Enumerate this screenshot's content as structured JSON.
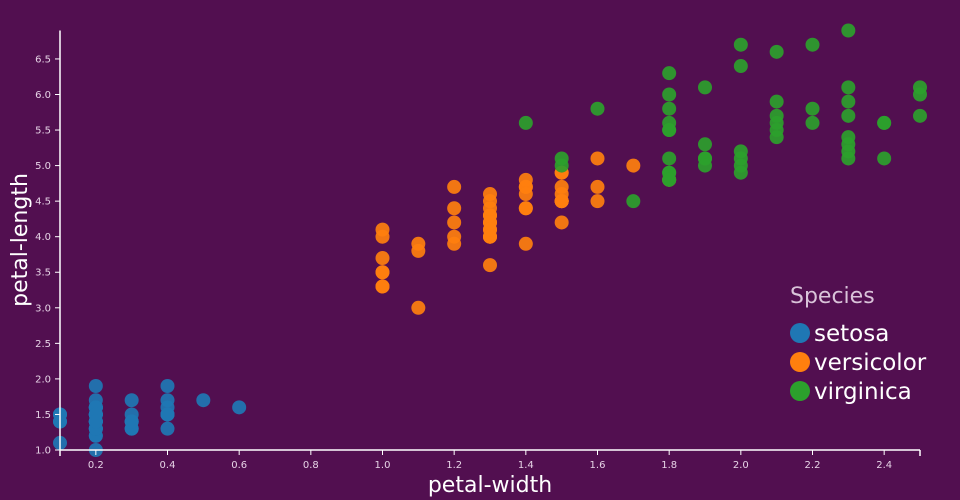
{
  "chart_data": {
    "type": "scatter",
    "xlabel": "petal-width",
    "ylabel": "petal-length",
    "xlim": [
      0.1,
      2.5
    ],
    "ylim": [
      1.0,
      6.9
    ],
    "xticks": [
      "0.2",
      "0.4",
      "0.6",
      "0.8",
      "1.0",
      "1.2",
      "1.4",
      "1.6",
      "1.8",
      "2.0",
      "2.2",
      "2.4"
    ],
    "yticks": [
      "1.0",
      "1.5",
      "2.0",
      "2.5",
      "3.0",
      "3.5",
      "4.0",
      "4.5",
      "5.0",
      "5.5",
      "6.0",
      "6.5"
    ],
    "legend": {
      "title": "Species",
      "placement": "bottom-right"
    },
    "series": [
      {
        "name": "setosa",
        "color": "#1f77b4",
        "points": [
          [
            0.2,
            1.4
          ],
          [
            0.2,
            1.4
          ],
          [
            0.2,
            1.3
          ],
          [
            0.2,
            1.5
          ],
          [
            0.2,
            1.4
          ],
          [
            0.4,
            1.7
          ],
          [
            0.3,
            1.4
          ],
          [
            0.2,
            1.5
          ],
          [
            0.2,
            1.4
          ],
          [
            0.1,
            1.5
          ],
          [
            0.2,
            1.5
          ],
          [
            0.2,
            1.6
          ],
          [
            0.1,
            1.4
          ],
          [
            0.1,
            1.1
          ],
          [
            0.2,
            1.2
          ],
          [
            0.4,
            1.5
          ],
          [
            0.4,
            1.3
          ],
          [
            0.3,
            1.4
          ],
          [
            0.3,
            1.7
          ],
          [
            0.3,
            1.5
          ],
          [
            0.2,
            1.7
          ],
          [
            0.4,
            1.5
          ],
          [
            0.2,
            1.0
          ],
          [
            0.5,
            1.7
          ],
          [
            0.2,
            1.9
          ],
          [
            0.2,
            1.6
          ],
          [
            0.4,
            1.6
          ],
          [
            0.2,
            1.5
          ],
          [
            0.2,
            1.4
          ],
          [
            0.2,
            1.6
          ],
          [
            0.2,
            1.6
          ],
          [
            0.4,
            1.5
          ],
          [
            0.1,
            1.5
          ],
          [
            0.2,
            1.4
          ],
          [
            0.2,
            1.5
          ],
          [
            0.2,
            1.2
          ],
          [
            0.2,
            1.3
          ],
          [
            0.1,
            1.4
          ],
          [
            0.2,
            1.3
          ],
          [
            0.2,
            1.5
          ],
          [
            0.3,
            1.3
          ],
          [
            0.3,
            1.3
          ],
          [
            0.2,
            1.3
          ],
          [
            0.6,
            1.6
          ],
          [
            0.4,
            1.9
          ],
          [
            0.3,
            1.4
          ],
          [
            0.2,
            1.6
          ],
          [
            0.2,
            1.4
          ],
          [
            0.2,
            1.5
          ],
          [
            0.2,
            1.4
          ]
        ]
      },
      {
        "name": "versicolor",
        "color": "#ff7f0e",
        "points": [
          [
            1.4,
            4.7
          ],
          [
            1.5,
            4.5
          ],
          [
            1.5,
            4.9
          ],
          [
            1.3,
            4.0
          ],
          [
            1.5,
            4.6
          ],
          [
            1.3,
            4.5
          ],
          [
            1.6,
            4.7
          ],
          [
            1.0,
            3.3
          ],
          [
            1.3,
            4.6
          ],
          [
            1.4,
            3.9
          ],
          [
            1.0,
            3.5
          ],
          [
            1.5,
            4.2
          ],
          [
            1.0,
            4.0
          ],
          [
            1.4,
            4.7
          ],
          [
            1.3,
            3.6
          ],
          [
            1.4,
            4.4
          ],
          [
            1.5,
            4.5
          ],
          [
            1.0,
            4.1
          ],
          [
            1.5,
            4.5
          ],
          [
            1.1,
            3.9
          ],
          [
            1.8,
            4.8
          ],
          [
            1.3,
            4.0
          ],
          [
            1.5,
            4.9
          ],
          [
            1.2,
            4.7
          ],
          [
            1.3,
            4.3
          ],
          [
            1.4,
            4.4
          ],
          [
            1.4,
            4.8
          ],
          [
            1.7,
            5.0
          ],
          [
            1.5,
            4.5
          ],
          [
            1.0,
            3.5
          ],
          [
            1.1,
            3.8
          ],
          [
            1.0,
            3.7
          ],
          [
            1.2,
            3.9
          ],
          [
            1.6,
            5.1
          ],
          [
            1.5,
            4.5
          ],
          [
            1.6,
            4.5
          ],
          [
            1.5,
            4.7
          ],
          [
            1.3,
            4.4
          ],
          [
            1.3,
            4.1
          ],
          [
            1.3,
            4.0
          ],
          [
            1.2,
            4.4
          ],
          [
            1.4,
            4.6
          ],
          [
            1.2,
            4.0
          ],
          [
            1.0,
            3.3
          ],
          [
            1.3,
            4.2
          ],
          [
            1.2,
            4.2
          ],
          [
            1.3,
            4.2
          ],
          [
            1.3,
            4.3
          ],
          [
            1.1,
            3.0
          ],
          [
            1.3,
            4.1
          ]
        ]
      },
      {
        "name": "virginica",
        "color": "#2ca02c",
        "points": [
          [
            2.5,
            6.0
          ],
          [
            1.9,
            5.1
          ],
          [
            2.1,
            5.9
          ],
          [
            1.8,
            5.6
          ],
          [
            2.2,
            5.8
          ],
          [
            2.1,
            6.6
          ],
          [
            1.7,
            4.5
          ],
          [
            1.8,
            6.3
          ],
          [
            1.8,
            5.8
          ],
          [
            2.5,
            6.1
          ],
          [
            2.0,
            5.1
          ],
          [
            1.9,
            5.3
          ],
          [
            2.1,
            5.5
          ],
          [
            2.0,
            5.0
          ],
          [
            2.4,
            5.1
          ],
          [
            2.3,
            5.3
          ],
          [
            1.8,
            5.5
          ],
          [
            2.2,
            6.7
          ],
          [
            2.3,
            6.9
          ],
          [
            1.5,
            5.0
          ],
          [
            2.3,
            5.7
          ],
          [
            2.0,
            4.9
          ],
          [
            2.0,
            6.7
          ],
          [
            1.8,
            4.9
          ],
          [
            2.1,
            5.7
          ],
          [
            1.8,
            6.0
          ],
          [
            1.8,
            4.8
          ],
          [
            1.8,
            4.9
          ],
          [
            2.1,
            5.6
          ],
          [
            1.6,
            5.8
          ],
          [
            1.9,
            6.1
          ],
          [
            2.0,
            6.4
          ],
          [
            2.2,
            5.6
          ],
          [
            1.5,
            5.1
          ],
          [
            1.4,
            5.6
          ],
          [
            2.3,
            6.1
          ],
          [
            2.4,
            5.6
          ],
          [
            1.8,
            5.5
          ],
          [
            1.8,
            4.8
          ],
          [
            2.1,
            5.4
          ],
          [
            2.4,
            5.6
          ],
          [
            2.3,
            5.1
          ],
          [
            1.9,
            5.1
          ],
          [
            2.3,
            5.9
          ],
          [
            2.5,
            5.7
          ],
          [
            2.3,
            5.2
          ],
          [
            1.9,
            5.0
          ],
          [
            2.0,
            5.2
          ],
          [
            2.3,
            5.4
          ],
          [
            1.8,
            5.1
          ]
        ]
      }
    ]
  }
}
